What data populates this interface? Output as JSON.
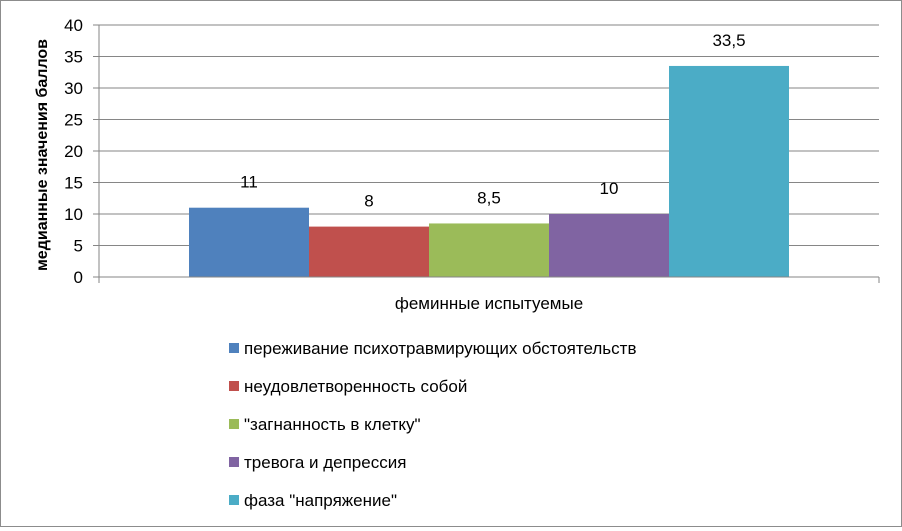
{
  "chart_data": {
    "type": "bar",
    "categories": [
      "феминные испытуемые"
    ],
    "series": [
      {
        "name": "переживание  психотравмирующих обстоятельств",
        "values": [
          11
        ],
        "label": "11",
        "color": "#4f81bd"
      },
      {
        "name": "неудовлетворенность собой",
        "values": [
          8
        ],
        "label": "8",
        "color": "#c0504d"
      },
      {
        "name": "\"загнанность в клетку\"",
        "values": [
          8.5
        ],
        "label": "8,5",
        "color": "#9bbb59"
      },
      {
        "name": "тревога и депрессия",
        "values": [
          10
        ],
        "label": "10",
        "color": "#8064a2"
      },
      {
        "name": "фаза \"напряжение\"",
        "values": [
          33.5
        ],
        "label": "33,5",
        "color": "#4bacc6"
      }
    ],
    "title": "",
    "xlabel": "",
    "ylabel": "медианные значения баллов",
    "ylim": [
      0,
      40
    ],
    "yticks": [
      "0",
      "5",
      "10",
      "15",
      "20",
      "25",
      "30",
      "35",
      "40"
    ],
    "grid": true,
    "legend_position": "bottom"
  }
}
